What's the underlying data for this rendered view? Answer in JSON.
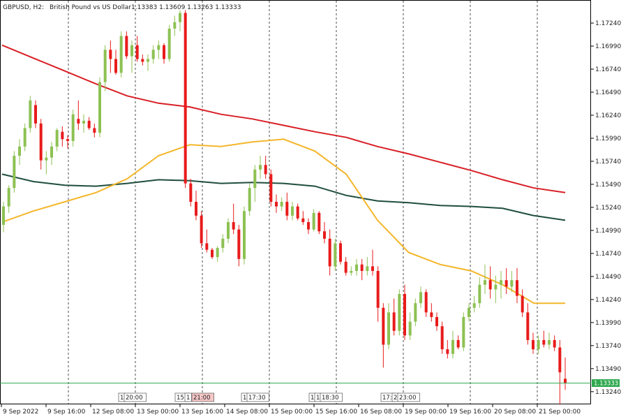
{
  "header": {
    "symbol": "GBPUSD, H2:",
    "description": "British Pound vs US Dollar",
    "ohlc": "1.13383 1.13609 1.13263 1.13333"
  },
  "colors": {
    "bull": "#8dc153",
    "bear": "#e81b1b",
    "ma_red": "#d81f26",
    "ma_yellow": "#f4b62a",
    "ma_green": "#1f4e3d",
    "price_line": "#2fa84f",
    "grid": "#000000"
  },
  "price_label": "1.13333",
  "chart_data": {
    "type": "candlestick",
    "title": "GBPUSD, H2: British Pound vs US Dollar",
    "ylim": [
      1.1311,
      1.1746
    ],
    "y_ticks": [
      "1.17240",
      "1.16990",
      "1.16740",
      "1.16490",
      "1.16240",
      "1.15990",
      "1.15740",
      "1.15490",
      "1.15240",
      "1.14990",
      "1.14740",
      "1.14490",
      "1.14240",
      "1.13990",
      "1.13740",
      "1.13490",
      "1.13240"
    ],
    "x_ticks": [
      "9 Sep 2022",
      "9 Sep 16:00",
      "12 Sep 08:00",
      "13 Sep 00:00",
      "13 Sep 16:00",
      "14 Sep 08:00",
      "15 Sep 00:00",
      "15 Sep 16:00",
      "16 Sep 08:00",
      "19 Sep 00:00",
      "19 Sep 16:00",
      "20 Sep 08:00",
      "21 Sep 00:00"
    ],
    "session_markers": [
      "1",
      "20:00",
      "15:",
      "1",
      "21:00",
      "1",
      "17:30",
      "1",
      "1",
      "18:30",
      "17:",
      "2",
      "23:00"
    ],
    "current_price": 1.13333,
    "candles": [
      [
        1.1505,
        1.153,
        1.1497,
        1.1525
      ],
      [
        1.1525,
        1.1548,
        1.1518,
        1.1545
      ],
      [
        1.1545,
        1.1585,
        1.154,
        1.158
      ],
      [
        1.158,
        1.1598,
        1.157,
        1.159
      ],
      [
        1.159,
        1.1615,
        1.1585,
        1.161
      ],
      [
        1.161,
        1.1645,
        1.1605,
        1.164
      ],
      [
        1.1635,
        1.164,
        1.161,
        1.1615
      ],
      [
        1.1615,
        1.162,
        1.1565,
        1.1575
      ],
      [
        1.1575,
        1.1585,
        1.156,
        1.1578
      ],
      [
        1.1578,
        1.1595,
        1.157,
        1.159
      ],
      [
        1.159,
        1.161,
        1.1585,
        1.1608
      ],
      [
        1.1606,
        1.1612,
        1.159,
        1.1598
      ],
      [
        1.1598,
        1.1602,
        1.1588,
        1.1596
      ],
      [
        1.1596,
        1.163,
        1.159,
        1.1625
      ],
      [
        1.162,
        1.164,
        1.1608,
        1.1615
      ],
      [
        1.1615,
        1.1625,
        1.1605,
        1.1618
      ],
      [
        1.1618,
        1.1622,
        1.1608,
        1.161
      ],
      [
        1.161,
        1.1615,
        1.16,
        1.1605
      ],
      [
        1.1605,
        1.1665,
        1.16,
        1.166
      ],
      [
        1.166,
        1.17,
        1.165,
        1.1695
      ],
      [
        1.1695,
        1.1705,
        1.167,
        1.1685
      ],
      [
        1.1685,
        1.1695,
        1.1668,
        1.167
      ],
      [
        1.167,
        1.1715,
        1.1665,
        1.171
      ],
      [
        1.171,
        1.1715,
        1.1685,
        1.1688
      ],
      [
        1.1688,
        1.1705,
        1.167,
        1.17
      ],
      [
        1.17,
        1.171,
        1.1682,
        1.1685
      ],
      [
        1.1685,
        1.169,
        1.1678,
        1.1682
      ],
      [
        1.1682,
        1.169,
        1.1672,
        1.1685
      ],
      [
        1.1685,
        1.17,
        1.168,
        1.1695
      ],
      [
        1.1695,
        1.1705,
        1.1685,
        1.17
      ],
      [
        1.17,
        1.1702,
        1.168,
        1.1685
      ],
      [
        1.1685,
        1.1722,
        1.1682,
        1.1718
      ],
      [
        1.1718,
        1.1732,
        1.171,
        1.1725
      ],
      [
        1.1725,
        1.1738,
        1.1715,
        1.1735
      ],
      [
        1.1735,
        1.1738,
        1.1545,
        1.155
      ],
      [
        1.155,
        1.1555,
        1.1525,
        1.153
      ],
      [
        1.153,
        1.1542,
        1.151,
        1.1515
      ],
      [
        1.1515,
        1.152,
        1.148,
        1.1485
      ],
      [
        1.1485,
        1.15,
        1.1475,
        1.1478
      ],
      [
        1.1478,
        1.148,
        1.1468,
        1.147
      ],
      [
        1.147,
        1.1482,
        1.1465,
        1.148
      ],
      [
        1.148,
        1.1495,
        1.1475,
        1.149
      ],
      [
        1.149,
        1.1512,
        1.1485,
        1.1508
      ],
      [
        1.1508,
        1.1528,
        1.1495,
        1.15
      ],
      [
        1.15,
        1.1505,
        1.146,
        1.1468
      ],
      [
        1.1468,
        1.1525,
        1.1462,
        1.152
      ],
      [
        1.152,
        1.155,
        1.1515,
        1.1545
      ],
      [
        1.1545,
        1.157,
        1.153,
        1.1565
      ],
      [
        1.1565,
        1.158,
        1.1555,
        1.157
      ],
      [
        1.157,
        1.158,
        1.1555,
        1.156
      ],
      [
        1.156,
        1.1565,
        1.1525,
        1.153
      ],
      [
        1.153,
        1.1538,
        1.1518,
        1.1525
      ],
      [
        1.1525,
        1.1535,
        1.152,
        1.153
      ],
      [
        1.153,
        1.154,
        1.151,
        1.1515
      ],
      [
        1.1515,
        1.153,
        1.151,
        1.1525
      ],
      [
        1.1525,
        1.1528,
        1.151,
        1.1512
      ],
      [
        1.1512,
        1.152,
        1.1505,
        1.1508
      ],
      [
        1.1508,
        1.1512,
        1.1495,
        1.15
      ],
      [
        1.15,
        1.1522,
        1.1498,
        1.1518
      ],
      [
        1.1518,
        1.152,
        1.1495,
        1.1498
      ],
      [
        1.1498,
        1.1508,
        1.1485,
        1.149
      ],
      [
        1.149,
        1.15,
        1.145,
        1.146
      ],
      [
        1.146,
        1.149,
        1.1455,
        1.1485
      ],
      [
        1.1485,
        1.1488,
        1.1462,
        1.1465
      ],
      [
        1.1465,
        1.147,
        1.145,
        1.1453
      ],
      [
        1.1453,
        1.146,
        1.145,
        1.1455
      ],
      [
        1.1455,
        1.1468,
        1.145,
        1.1462
      ],
      [
        1.1462,
        1.1468,
        1.1445,
        1.1455
      ],
      [
        1.1455,
        1.147,
        1.145,
        1.146
      ],
      [
        1.146,
        1.1478,
        1.145,
        1.1455
      ],
      [
        1.1455,
        1.146,
        1.14,
        1.1415
      ],
      [
        1.1415,
        1.142,
        1.135,
        1.1375
      ],
      [
        1.1375,
        1.142,
        1.137,
        1.141
      ],
      [
        1.141,
        1.1425,
        1.1385,
        1.139
      ],
      [
        1.139,
        1.1435,
        1.1385,
        1.143
      ],
      [
        1.143,
        1.144,
        1.138,
        1.1385
      ],
      [
        1.1385,
        1.141,
        1.138,
        1.14
      ],
      [
        1.14,
        1.1425,
        1.1395,
        1.142
      ],
      [
        1.142,
        1.1438,
        1.1415,
        1.1432
      ],
      [
        1.1432,
        1.1435,
        1.1405,
        1.141
      ],
      [
        1.141,
        1.142,
        1.14,
        1.1405
      ],
      [
        1.1405,
        1.141,
        1.139,
        1.1395
      ],
      [
        1.1395,
        1.14,
        1.1365,
        1.137
      ],
      [
        1.137,
        1.138,
        1.136,
        1.1365
      ],
      [
        1.1365,
        1.139,
        1.136,
        1.138
      ],
      [
        1.138,
        1.1385,
        1.137,
        1.1372
      ],
      [
        1.1372,
        1.141,
        1.1368,
        1.1405
      ],
      [
        1.1405,
        1.142,
        1.14,
        1.1415
      ],
      [
        1.1415,
        1.1428,
        1.141,
        1.142
      ],
      [
        1.142,
        1.1448,
        1.1415,
        1.144
      ],
      [
        1.144,
        1.1462,
        1.143,
        1.1445
      ],
      [
        1.1445,
        1.146,
        1.1425,
        1.1435
      ],
      [
        1.1435,
        1.145,
        1.142,
        1.144
      ],
      [
        1.144,
        1.1455,
        1.1425,
        1.1445
      ],
      [
        1.1445,
        1.1458,
        1.143,
        1.1438
      ],
      [
        1.1438,
        1.1455,
        1.1432,
        1.1445
      ],
      [
        1.1445,
        1.1458,
        1.142,
        1.1428
      ],
      [
        1.1428,
        1.1435,
        1.1405,
        1.141
      ],
      [
        1.141,
        1.142,
        1.1375,
        1.138
      ],
      [
        1.138,
        1.1388,
        1.1365,
        1.137
      ],
      [
        1.137,
        1.1385,
        1.1365,
        1.138
      ],
      [
        1.138,
        1.139,
        1.1372,
        1.1375
      ],
      [
        1.1375,
        1.1388,
        1.137,
        1.138
      ],
      [
        1.138,
        1.1385,
        1.1368,
        1.1372
      ],
      [
        1.1372,
        1.138,
        1.131,
        1.1345
      ],
      [
        1.1338,
        1.1361,
        1.1326,
        1.1333
      ]
    ],
    "ma_red": [
      1.17,
      1.1686,
      1.1672,
      1.1658,
      1.1645,
      1.1637,
      1.1633,
      1.1625,
      1.162,
      1.1613,
      1.1606,
      1.16,
      1.159,
      1.1582,
      1.1573,
      1.1564,
      1.1554,
      1.1545,
      1.154
    ],
    "ma_green": [
      1.156,
      1.1552,
      1.1548,
      1.1547,
      1.155,
      1.1554,
      1.1553,
      1.155,
      1.1551,
      1.155,
      1.1547,
      1.1537,
      1.1531,
      1.1529,
      1.1526,
      1.1525,
      1.1523,
      1.1515,
      1.151
    ],
    "ma_yellow": [
      1.1508,
      1.152,
      1.153,
      1.154,
      1.1555,
      1.158,
      1.1592,
      1.159,
      1.1595,
      1.1598,
      1.1585,
      1.156,
      1.151,
      1.1475,
      1.1462,
      1.1455,
      1.144,
      1.142,
      1.142
    ]
  }
}
